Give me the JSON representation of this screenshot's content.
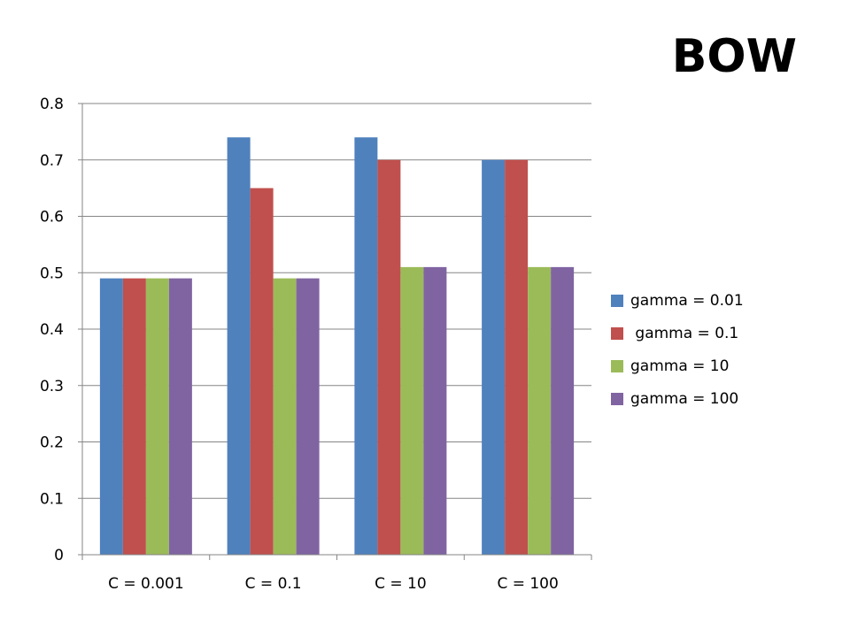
{
  "chart_data": {
    "type": "bar",
    "title": "BOW",
    "categories": [
      "C = 0.001",
      "C = 0.1",
      "C = 10",
      "C = 100"
    ],
    "series": [
      {
        "name": "gamma = 0.01",
        "color": "#4F81BD",
        "values": [
          0.49,
          0.74,
          0.74,
          0.7
        ]
      },
      {
        "name": " gamma = 0.1",
        "color": "#C0504D",
        "values": [
          0.49,
          0.65,
          0.7,
          0.7
        ]
      },
      {
        "name": "gamma = 10",
        "color": "#9BBB59",
        "values": [
          0.49,
          0.49,
          0.51,
          0.51
        ]
      },
      {
        "name": "gamma = 100",
        "color": "#8064A2",
        "values": [
          0.49,
          0.49,
          0.51,
          0.51
        ]
      }
    ],
    "ylim": [
      0,
      0.8
    ],
    "yticks": [
      "0",
      "0.1",
      "0.2",
      "0.3",
      "0.4",
      "0.5",
      "0.6",
      "0.7",
      "0.8"
    ],
    "xlabel": "",
    "ylabel": "",
    "grid": true,
    "legend_position": "right"
  }
}
